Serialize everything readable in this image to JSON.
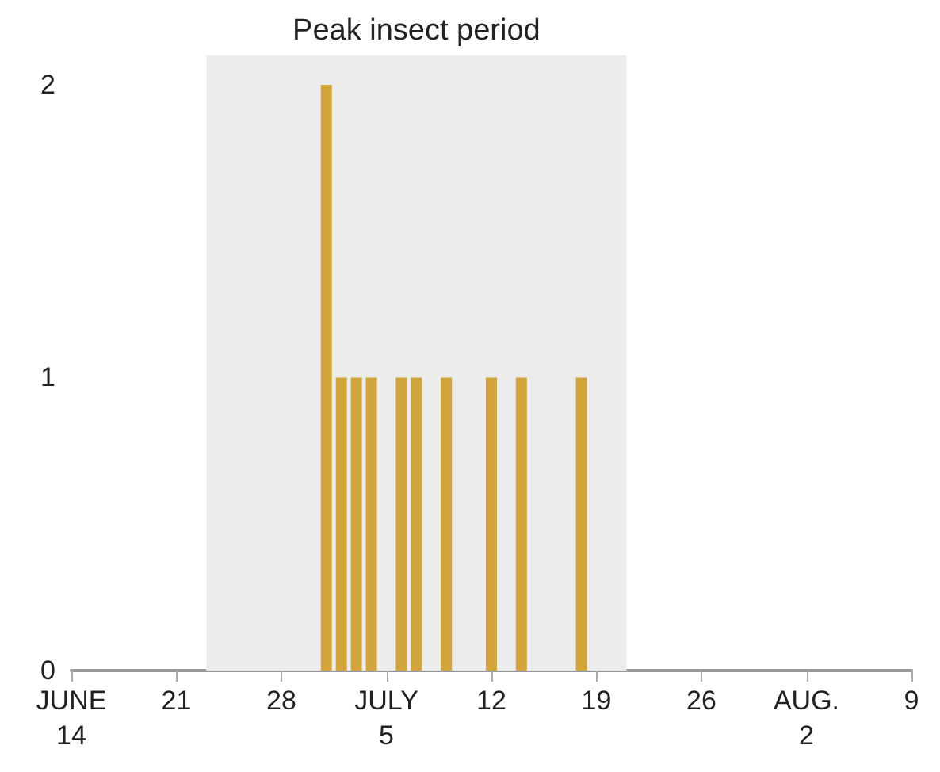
{
  "chart_data": {
    "type": "bar",
    "x": [
      "--07-01",
      "--07-02",
      "--07-03",
      "--07-04",
      "--07-06",
      "--07-07",
      "--07-09",
      "--07-12",
      "--07-14",
      "--07-18"
    ],
    "values": [
      2,
      1,
      1,
      1,
      1,
      1,
      1,
      1,
      1,
      1
    ],
    "color": "#d2a43c",
    "xlim": [
      "--06-14",
      "--08-09"
    ],
    "xticks": [
      {
        "value": "--06-14",
        "label": "JUNE\n14"
      },
      {
        "value": "--06-21",
        "label": "21"
      },
      {
        "value": "--06-28",
        "label": "28"
      },
      {
        "value": "--07-05",
        "label": "JULY\n5"
      },
      {
        "value": "--07-12",
        "label": "12"
      },
      {
        "value": "--07-19",
        "label": "19"
      },
      {
        "value": "--07-26",
        "label": "26"
      },
      {
        "value": "--08-02",
        "label": "AUG.\n2"
      },
      {
        "value": "--08-09",
        "label": "9"
      }
    ],
    "ylim": [
      0,
      2.1
    ],
    "yticks": [
      0,
      1,
      2
    ],
    "bands": [
      {
        "axis": "x",
        "from": "--06-23",
        "to": "--07-21",
        "label": "Peak insect period",
        "color": "#ececec"
      }
    ],
    "grid": false
  }
}
